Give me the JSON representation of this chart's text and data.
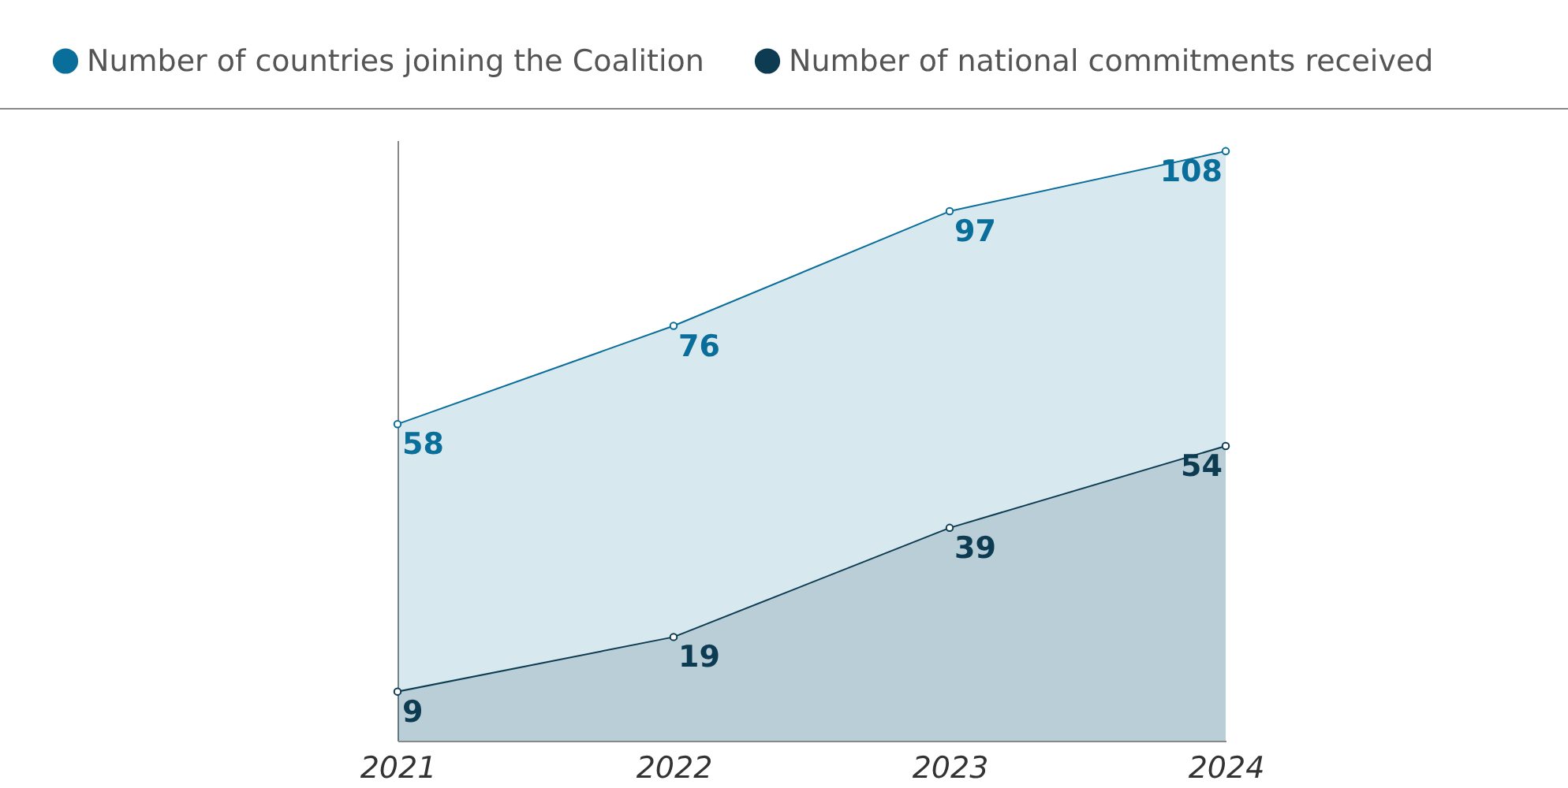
{
  "chart_data": {
    "type": "area",
    "categories": [
      "2021",
      "2022",
      "2023",
      "2024"
    ],
    "series": [
      {
        "name": "Number of countries joining the Coalition",
        "color": "#0a6e9a",
        "values": [
          58,
          76,
          97,
          108
        ]
      },
      {
        "name": "Number of national commitments received",
        "color": "#0d3b52",
        "values": [
          9,
          19,
          39,
          54
        ]
      }
    ],
    "ylim": [
      0,
      110
    ],
    "tick_labels": "x",
    "data_labels": true,
    "marker": "circle",
    "legend": "top",
    "grid": false
  }
}
